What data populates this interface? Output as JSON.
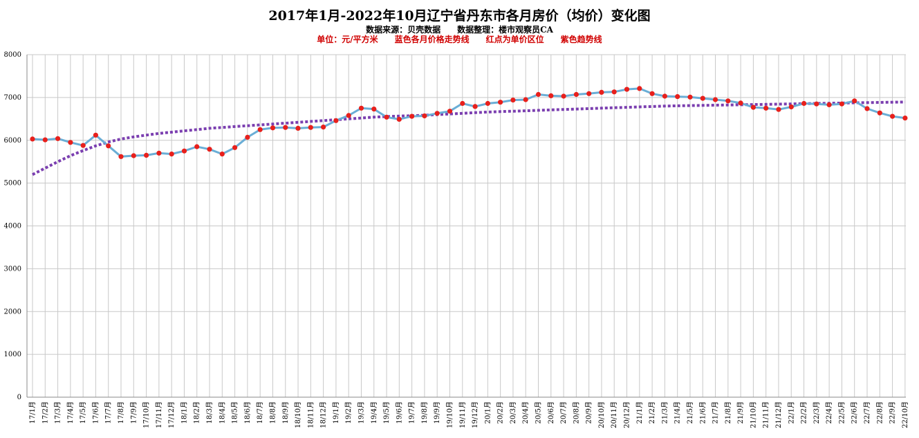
{
  "chart_data": {
    "type": "line",
    "title": "2017年1月-2022年10月辽宁省丹东市各月房价（均价）变化图",
    "subtitle": "数据来源：贝壳数据　　数据整理：楼市观察员CA",
    "note": "单位：元/平方米　　蓝色各月价格走势线　　红点为单价区位　　紫色趋势线",
    "ylim": [
      0,
      8000
    ],
    "yticks": [
      0,
      1000,
      2000,
      3000,
      4000,
      5000,
      6000,
      7000,
      8000
    ],
    "grid": true,
    "categories": [
      "17/1月",
      "17/2月",
      "17/3月",
      "17/4月",
      "17/5月",
      "17/6月",
      "17/7月",
      "17/8月",
      "17/9月",
      "17/10月",
      "17/11月",
      "17/12月",
      "18/1月",
      "18/2月",
      "18/3月",
      "18/4月",
      "18/5月",
      "18/6月",
      "18/7月",
      "18/8月",
      "18/9月",
      "18/10月",
      "18/11月",
      "18/12月",
      "19/1月",
      "19/2月",
      "19/3月",
      "19/4月",
      "19/5月",
      "19/6月",
      "19/7月",
      "19/8月",
      "19/9月",
      "19/10月",
      "19/11月",
      "19/12月",
      "20/1月",
      "20/2月",
      "20/3月",
      "20/4月",
      "20/5月",
      "20/6月",
      "20/7月",
      "20/8月",
      "20/9月",
      "20/10月",
      "20/11月",
      "20/12月",
      "21/1月",
      "21/2月",
      "21/3月",
      "21/4月",
      "21/5月",
      "21/6月",
      "21/7月",
      "21/8月",
      "21/9月",
      "21/10月",
      "21/11月",
      "21/12月",
      "22/1月",
      "22/2月",
      "22/3月",
      "22/4月",
      "22/5月",
      "22/6月",
      "22/7月",
      "22/8月",
      "22/9月",
      "22/10月"
    ],
    "series": [
      {
        "name": "各月价格走势线",
        "color": "#6aaed6",
        "marker_color": "#e8201c",
        "values": [
          6030,
          6010,
          6040,
          5950,
          5880,
          6120,
          5870,
          5620,
          5640,
          5650,
          5700,
          5680,
          5750,
          5850,
          5790,
          5680,
          5830,
          6070,
          6250,
          6290,
          6300,
          6280,
          6300,
          6310,
          6460,
          6580,
          6750,
          6730,
          6540,
          6490,
          6560,
          6570,
          6630,
          6680,
          6860,
          6790,
          6860,
          6890,
          6940,
          6950,
          7070,
          7040,
          7030,
          7070,
          7090,
          7120,
          7130,
          7190,
          7210,
          7090,
          7030,
          7020,
          7010,
          6980,
          6950,
          6920,
          6870,
          6770,
          6750,
          6720,
          6780,
          6860,
          6850,
          6830,
          6850,
          6920,
          6740,
          6640,
          6560,
          6520
        ]
      },
      {
        "name": "趋势线",
        "color": "#7b3fb0",
        "values": [
          5200,
          5350,
          5500,
          5640,
          5760,
          5870,
          5960,
          6030,
          6080,
          6120,
          6160,
          6190,
          6220,
          6250,
          6280,
          6300,
          6320,
          6340,
          6360,
          6380,
          6400,
          6420,
          6440,
          6460,
          6480,
          6500,
          6520,
          6540,
          6555,
          6565,
          6575,
          6585,
          6600,
          6615,
          6630,
          6645,
          6660,
          6670,
          6680,
          6690,
          6700,
          6710,
          6720,
          6730,
          6740,
          6750,
          6760,
          6770,
          6780,
          6790,
          6800,
          6805,
          6810,
          6815,
          6820,
          6825,
          6830,
          6835,
          6840,
          6845,
          6850,
          6855,
          6860,
          6865,
          6870,
          6875,
          6880,
          6885,
          6890,
          6895
        ]
      }
    ]
  }
}
